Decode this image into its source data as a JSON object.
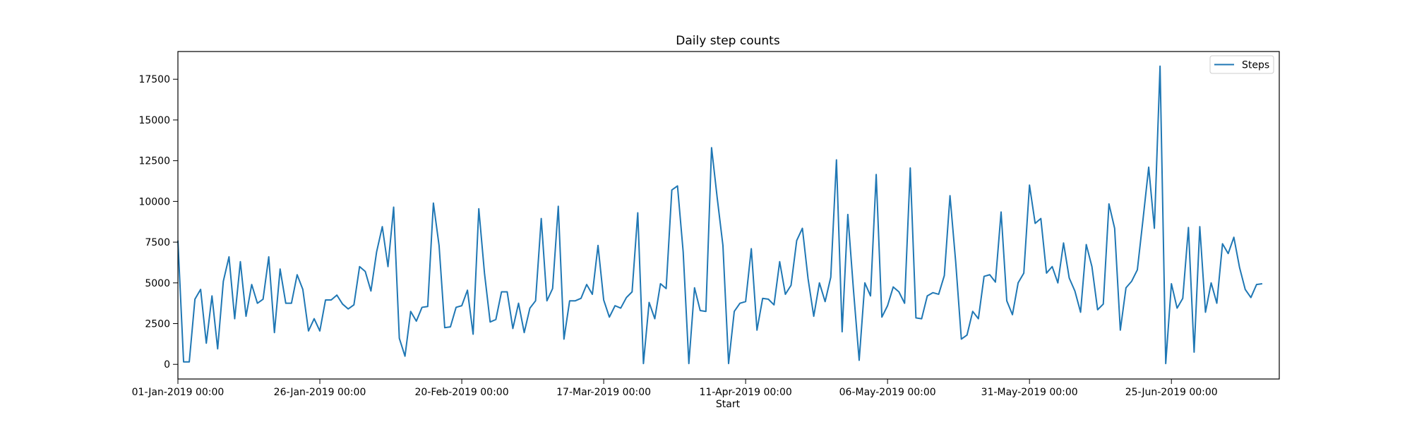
{
  "chart_data": {
    "type": "line",
    "title": "Daily step counts",
    "xlabel": "Start",
    "ylabel": "",
    "x_start": "2019-01-01",
    "x_end": "2019-07-14",
    "xlim": [
      "2019-01-01",
      "2019-07-14"
    ],
    "ylim": [
      -900,
      19200
    ],
    "y_ticks": [
      0,
      2500,
      5000,
      7500,
      10000,
      12500,
      15000,
      17500
    ],
    "y_tick_labels": [
      "0",
      "2500",
      "5000",
      "7500",
      "10000",
      "12500",
      "15000",
      "17500"
    ],
    "x_ticks": [
      "2019-01-01",
      "2019-01-26",
      "2019-02-20",
      "2019-03-17",
      "2019-04-11",
      "2019-05-06",
      "2019-05-31",
      "2019-06-25"
    ],
    "x_tick_labels": [
      "01-Jan-2019 00:00",
      "26-Jan-2019 00:00",
      "20-Feb-2019 00:00",
      "17-Mar-2019 00:00",
      "11-Apr-2019 00:00",
      "06-May-2019 00:00",
      "31-May-2019 00:00",
      "25-Jun-2019 00:00"
    ],
    "grid": false,
    "legend_position": "top-right",
    "series": [
      {
        "name": "Steps",
        "color": "#1f77b4",
        "values": [
          7600,
          150,
          150,
          4000,
          4600,
          1300,
          4200,
          950,
          5100,
          6600,
          2800,
          6300,
          2950,
          4900,
          3750,
          4000,
          6600,
          1950,
          5850,
          3750,
          3750,
          5500,
          4600,
          2050,
          2800,
          2050,
          3950,
          3950,
          4250,
          3700,
          3400,
          3650,
          6000,
          5700,
          4500,
          6900,
          8450,
          6000,
          9650,
          1600,
          500,
          3250,
          2650,
          3500,
          3550,
          9900,
          7300,
          2250,
          2300,
          3500,
          3600,
          4550,
          1850,
          9550,
          5600,
          2600,
          2750,
          4450,
          4450,
          2200,
          3750,
          1950,
          3450,
          3900,
          8950,
          3900,
          4650,
          9700,
          1550,
          3900,
          3900,
          4050,
          4900,
          4300,
          7300,
          3950,
          2900,
          3600,
          3450,
          4100,
          4450,
          9300,
          50,
          3800,
          2800,
          4950,
          4650,
          10700,
          10950,
          6900,
          50,
          4700,
          3300,
          3250,
          13300,
          10200,
          7300,
          50,
          3250,
          3750,
          3850,
          7100,
          2100,
          4050,
          4000,
          3650,
          6300,
          4300,
          4850,
          7600,
          8350,
          5250,
          2950,
          5000,
          3850,
          5350,
          12550,
          2000,
          9200,
          4550,
          250,
          5000,
          4200,
          11650,
          2900,
          3600,
          4750,
          4450,
          3750,
          12050,
          2850,
          2800,
          4200,
          4400,
          4300,
          5450,
          10350,
          6300,
          1550,
          1800,
          3250,
          2800,
          5400,
          5500,
          5050,
          9350,
          3900,
          3050,
          5000,
          5600,
          11000,
          8650,
          8950,
          5600,
          6000,
          5000,
          7450,
          5300,
          4500,
          3200,
          7350,
          6000,
          3350,
          3700,
          9850,
          8350,
          2100,
          4700,
          5100,
          5800,
          8900,
          12100,
          8350,
          18300,
          50,
          4950,
          3450,
          4050,
          8400,
          750,
          8450,
          3200,
          5000,
          3750,
          7400,
          6800,
          7800,
          5950,
          4600,
          4100,
          4900,
          4950
        ]
      }
    ]
  }
}
